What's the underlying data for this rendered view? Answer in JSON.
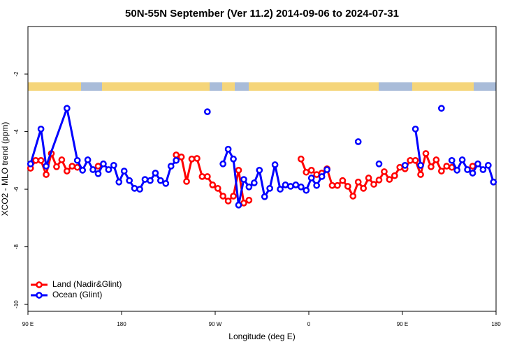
{
  "chart_data": {
    "type": "line",
    "title": "50N-55N September (Ver 11.2)   2014-09-06 to 2024-07-31",
    "x_label": "Longitude (deg E)",
    "y_label": "XCO2 - MLO trend (ppm)",
    "xlim": [
      90,
      540
    ],
    "xticks": [
      {
        "value": 90,
        "label": "90 E"
      },
      180,
      {
        "value": 270,
        "label": "90 W"
      },
      {
        "value": 360,
        "label": "0"
      },
      {
        "value": 450,
        "label": "90 E"
      },
      {
        "value": 540,
        "label": "180"
      }
    ],
    "ylim": [
      -10.24,
      -0.35
    ],
    "yticks": [
      -2,
      -4,
      -6,
      -8,
      -10
    ],
    "legend": "bottom-left",
    "series": [
      {
        "name": "Land (Nadir&Glint)",
        "color": "#ff0000",
        "x": [
          92.5,
          97.5,
          102.5,
          107.5,
          112.5,
          117.5,
          122.5,
          127.5,
          132.5,
          137.5,
          null,
          157.5,
          null,
          232.5,
          237.5,
          242.5,
          247.5,
          252.5,
          257.5,
          262.5,
          267.5,
          272.5,
          277.5,
          282.5,
          287.5,
          292.5,
          297.5,
          302.5,
          null,
          352.5,
          357.5,
          362.5,
          367.5,
          372.5,
          377.5,
          382.5,
          387.5,
          392.5,
          397.5,
          402.5,
          407.5,
          412.5,
          417.5,
          422.5,
          427.5,
          432.5,
          437.5,
          442.5,
          447.5,
          452.5,
          457.5,
          462.5,
          467.5,
          472.5,
          477.5,
          482.5,
          487.5,
          492.5,
          497.5,
          null,
          517.5
        ],
        "values": [
          -5.27,
          -5.0,
          -5.0,
          -5.49,
          -4.76,
          -5.22,
          -4.98,
          -5.37,
          -5.2,
          -5.24,
          null,
          -5.2,
          null,
          -4.81,
          -4.88,
          -5.73,
          -4.95,
          -4.93,
          -5.56,
          -5.56,
          -5.85,
          -5.97,
          -6.24,
          -6.41,
          -6.24,
          -5.34,
          -6.48,
          -6.38,
          null,
          -4.95,
          -5.41,
          -5.34,
          -5.49,
          -5.44,
          -5.29,
          -5.87,
          -5.87,
          -5.7,
          -5.9,
          -6.24,
          -5.75,
          -5.97,
          -5.61,
          -5.83,
          -5.68,
          -5.39,
          -5.66,
          -5.53,
          -5.24,
          -5.29,
          -5.0,
          -5.0,
          -5.49,
          -4.76,
          -5.22,
          -4.98,
          -5.37,
          -5.2,
          -5.24,
          null,
          -5.2
        ]
      },
      {
        "name": "Ocean (Glint)",
        "color": "#0000ff",
        "x": [
          92.5,
          102.5,
          107.5,
          127.5,
          137.5,
          142.5,
          147.5,
          152.5,
          157.5,
          162.5,
          167.5,
          172.5,
          177.5,
          182.5,
          187.5,
          192.5,
          197.5,
          202.5,
          207.5,
          212.5,
          217.5,
          222.5,
          227.5,
          232.5,
          null,
          262.5,
          null,
          277.5,
          282.5,
          287.5,
          292.5,
          297.5,
          302.5,
          307.5,
          312.5,
          317.5,
          322.5,
          327.5,
          332.5,
          337.5,
          342.5,
          347.5,
          352.5,
          357.5,
          362.5,
          367.5,
          372.5,
          377.5,
          null,
          407.5,
          null,
          427.5,
          null,
          452.5,
          null,
          462.5,
          467.5,
          null,
          487.5,
          null,
          497.5,
          502.5,
          507.5,
          512.5,
          517.5,
          522.5,
          527.5,
          532.5,
          537.5
        ],
        "values": [
          -5.12,
          -3.91,
          -5.2,
          -3.19,
          -5.0,
          -5.34,
          -4.98,
          -5.32,
          -5.46,
          -5.12,
          -5.32,
          -5.17,
          -5.75,
          -5.37,
          -5.7,
          -5.97,
          -6.0,
          -5.66,
          -5.7,
          -5.44,
          -5.7,
          -5.8,
          -5.2,
          -5.0,
          null,
          -3.31,
          null,
          -5.12,
          -4.61,
          -4.95,
          -6.55,
          -5.66,
          -5.92,
          -5.78,
          -5.34,
          -6.26,
          -5.97,
          -5.15,
          -6.0,
          -5.85,
          -5.9,
          -5.85,
          -5.92,
          -6.04,
          -5.61,
          -5.87,
          -5.56,
          -5.32,
          null,
          -4.35,
          null,
          -5.12,
          null,
          -5.17,
          null,
          -3.91,
          -5.17,
          null,
          -3.19,
          null,
          -5.0,
          -5.34,
          -4.98,
          -5.32,
          -5.44,
          -5.12,
          -5.32,
          -5.17,
          -5.75
        ]
      }
    ]
  }
}
